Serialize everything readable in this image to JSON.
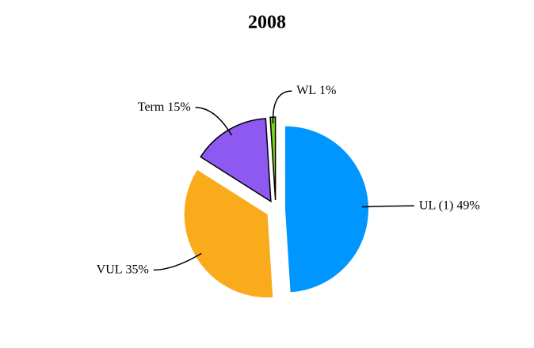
{
  "chart_data": {
    "type": "pie",
    "title": "2008",
    "categories": [
      "UL (1)",
      "VUL",
      "Term",
      "WL"
    ],
    "values": [
      49,
      35,
      15,
      1
    ],
    "value_labels": [
      "49%",
      "35%",
      "15%",
      "1%"
    ],
    "colors": [
      "#0096ff",
      "#f9ab1c",
      "#8e59f0",
      "#7ed321"
    ]
  }
}
